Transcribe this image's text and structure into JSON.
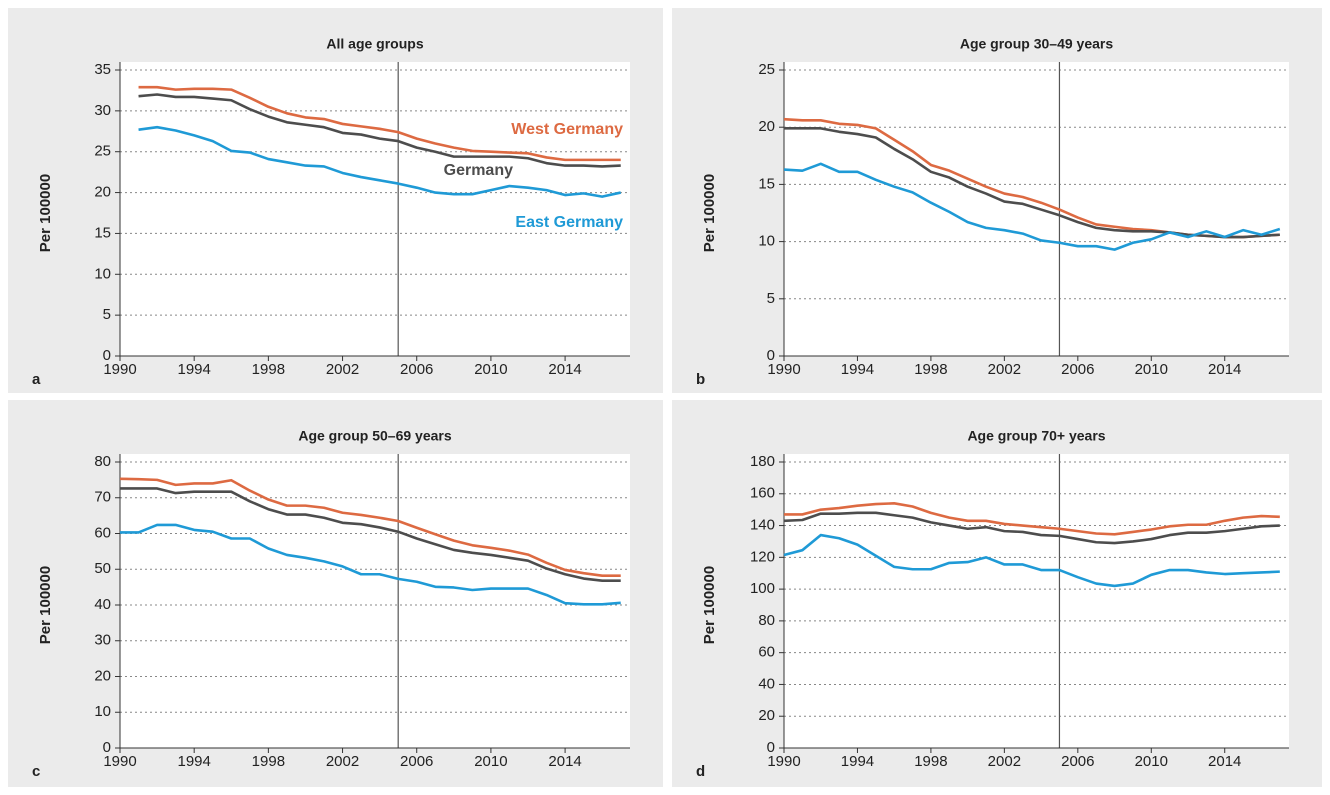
{
  "chart_data": [
    {
      "type": "line",
      "panel_label": "a",
      "title": "All age groups",
      "y_label": "Per 100000",
      "x": [
        1991,
        1992,
        1993,
        1994,
        1995,
        1996,
        1997,
        1998,
        1999,
        2000,
        2001,
        2002,
        2003,
        2004,
        2005,
        2006,
        2007,
        2008,
        2009,
        2010,
        2011,
        2012,
        2013,
        2014,
        2015,
        2016,
        2017
      ],
      "series": [
        {
          "name": "West Germany",
          "color": "#dd6a42",
          "values": [
            32.9,
            32.9,
            32.6,
            32.7,
            32.7,
            32.6,
            31.6,
            30.5,
            29.7,
            29.2,
            29.0,
            28.4,
            28.1,
            27.8,
            27.4,
            26.6,
            26.0,
            25.5,
            25.1,
            25.0,
            24.9,
            24.8,
            24.3,
            24.0,
            24.0,
            24.0,
            24.0
          ]
        },
        {
          "name": "Germany",
          "color": "#4d4d4d",
          "values": [
            31.8,
            32.0,
            31.7,
            31.7,
            31.5,
            31.3,
            30.2,
            29.3,
            28.6,
            28.3,
            28.0,
            27.3,
            27.1,
            26.6,
            26.3,
            25.5,
            25.0,
            24.4,
            24.4,
            24.4,
            24.4,
            24.2,
            23.6,
            23.3,
            23.3,
            23.2,
            23.3
          ]
        },
        {
          "name": "East Germany",
          "color": "#1f9ad6",
          "values": [
            27.7,
            28.0,
            27.6,
            27.0,
            26.3,
            25.1,
            24.9,
            24.1,
            23.7,
            23.3,
            23.2,
            22.4,
            21.9,
            21.5,
            21.1,
            20.6,
            20.0,
            19.8,
            19.8,
            20.3,
            20.8,
            20.6,
            20.3,
            19.7,
            19.9,
            19.5,
            20.0
          ]
        }
      ],
      "xlim": [
        1990,
        2017.5
      ],
      "xticks": [
        1990,
        1994,
        1998,
        2002,
        2006,
        2010,
        2014
      ],
      "ylim": [
        0,
        35
      ],
      "yticks": [
        0,
        5,
        10,
        15,
        20,
        25,
        30,
        35
      ],
      "vline": 2005,
      "grid": true
    },
    {
      "type": "line",
      "panel_label": "b",
      "title": "Age group 30–49 years",
      "y_label": "Per 100000",
      "x": [
        1990,
        1991,
        1992,
        1993,
        1994,
        1995,
        1996,
        1997,
        1998,
        1999,
        2000,
        2001,
        2002,
        2003,
        2004,
        2005,
        2006,
        2007,
        2008,
        2009,
        2010,
        2011,
        2012,
        2013,
        2014,
        2015,
        2016,
        2017
      ],
      "series": [
        {
          "color": "#dd6a42",
          "values": [
            20.7,
            20.6,
            20.6,
            20.3,
            20.2,
            19.9,
            18.9,
            17.9,
            16.7,
            16.2,
            15.5,
            14.8,
            14.2,
            13.9,
            13.4,
            12.8,
            12.1,
            11.5,
            11.3,
            11.1,
            11.0,
            10.8,
            10.6,
            10.5,
            10.4,
            10.4,
            10.5,
            10.6
          ]
        },
        {
          "color": "#4d4d4d",
          "values": [
            19.9,
            19.9,
            19.9,
            19.6,
            19.4,
            19.1,
            18.1,
            17.2,
            16.1,
            15.6,
            14.8,
            14.2,
            13.5,
            13.3,
            12.8,
            12.3,
            11.7,
            11.2,
            11.0,
            10.9,
            10.9,
            10.8,
            10.6,
            10.5,
            10.4,
            10.4,
            10.5,
            10.6
          ]
        },
        {
          "color": "#1f9ad6",
          "values": [
            16.3,
            16.2,
            16.8,
            16.1,
            16.1,
            15.4,
            14.8,
            14.3,
            13.4,
            12.6,
            11.7,
            11.2,
            11.0,
            10.7,
            10.1,
            9.9,
            9.6,
            9.6,
            9.3,
            9.9,
            10.2,
            10.8,
            10.4,
            10.9,
            10.4,
            11.0,
            10.6,
            11.1
          ]
        }
      ],
      "xlim": [
        1990,
        2017.5
      ],
      "xticks": [
        1990,
        1994,
        1998,
        2002,
        2006,
        2010,
        2014
      ],
      "ylim": [
        0,
        25
      ],
      "yticks": [
        0,
        5,
        10,
        15,
        20,
        25
      ],
      "vline": 2005,
      "grid": true
    },
    {
      "type": "line",
      "panel_label": "c",
      "title": "Age group 50–69 years",
      "y_label": "Per 100000",
      "x": [
        1990,
        1991,
        1992,
        1993,
        1994,
        1995,
        1996,
        1997,
        1998,
        1999,
        2000,
        2001,
        2002,
        2003,
        2004,
        2005,
        2006,
        2007,
        2008,
        2009,
        2010,
        2011,
        2012,
        2013,
        2014,
        2015,
        2016,
        2017
      ],
      "series": [
        {
          "color": "#dd6a42",
          "values": [
            75.3,
            75.2,
            75.0,
            73.6,
            74.0,
            74.0,
            74.9,
            72.0,
            69.5,
            67.8,
            67.8,
            67.2,
            65.8,
            65.2,
            64.4,
            63.5,
            61.6,
            59.8,
            58.0,
            56.7,
            56.0,
            55.2,
            54.1,
            51.8,
            49.8,
            48.9,
            48.2,
            48.2
          ]
        },
        {
          "color": "#4d4d4d",
          "values": [
            72.6,
            72.6,
            72.6,
            71.3,
            71.7,
            71.7,
            71.7,
            69.0,
            66.8,
            65.3,
            65.3,
            64.4,
            63.0,
            62.6,
            61.7,
            60.5,
            58.6,
            57.0,
            55.4,
            54.6,
            54.0,
            53.2,
            52.4,
            50.2,
            48.6,
            47.4,
            46.8,
            46.8
          ]
        },
        {
          "color": "#1f9ad6",
          "values": [
            60.3,
            60.3,
            62.4,
            62.4,
            61.0,
            60.5,
            58.6,
            58.6,
            55.8,
            54.0,
            53.2,
            52.2,
            50.8,
            48.6,
            48.6,
            47.3,
            46.5,
            45.1,
            44.9,
            44.2,
            44.6,
            44.6,
            44.6,
            42.8,
            40.5,
            40.2,
            40.2,
            40.6
          ]
        }
      ],
      "xlim": [
        1990,
        2017.5
      ],
      "xticks": [
        1990,
        1994,
        1998,
        2002,
        2006,
        2010,
        2014
      ],
      "ylim": [
        0,
        80
      ],
      "yticks": [
        0,
        10,
        20,
        30,
        40,
        50,
        60,
        70,
        80
      ],
      "vline": 2005,
      "grid": true
    },
    {
      "type": "line",
      "panel_label": "d",
      "title": "Age group 70+ years",
      "y_label": "Per 100000",
      "x": [
        1990,
        1991,
        1992,
        1993,
        1994,
        1995,
        1996,
        1997,
        1998,
        1999,
        2000,
        2001,
        2002,
        2003,
        2004,
        2005,
        2006,
        2007,
        2008,
        2009,
        2010,
        2011,
        2012,
        2013,
        2014,
        2015,
        2016,
        2017
      ],
      "series": [
        {
          "color": "#dd6a42",
          "values": [
            147,
            147,
            150,
            151,
            152.5,
            153.5,
            154,
            152,
            148,
            145,
            143,
            143,
            141,
            140,
            139,
            138,
            136.5,
            135,
            134.5,
            136,
            137.5,
            139.5,
            140.5,
            140.5,
            143,
            145,
            146,
            145.5
          ]
        },
        {
          "color": "#4d4d4d",
          "values": [
            143,
            143.5,
            147.5,
            147.5,
            148,
            148,
            146.5,
            145,
            142,
            140,
            138,
            139,
            136.5,
            136,
            134,
            133.5,
            131.5,
            129.5,
            129,
            130,
            131.5,
            134,
            135.5,
            135.5,
            136.5,
            138,
            139.5,
            140
          ]
        },
        {
          "color": "#1f9ad6",
          "values": [
            121.5,
            124.5,
            134,
            132,
            128,
            121,
            114,
            112.5,
            112.5,
            116.5,
            117,
            120,
            115.5,
            115.5,
            112,
            112,
            107.5,
            103.5,
            102,
            103.5,
            109,
            112,
            112,
            110.5,
            109.5,
            110,
            110.5,
            111
          ]
        }
      ],
      "xlim": [
        1990,
        2017.5
      ],
      "xticks": [
        1990,
        1994,
        1998,
        2002,
        2006,
        2010,
        2014
      ],
      "ylim": [
        0,
        180
      ],
      "yticks": [
        0,
        20,
        40,
        60,
        80,
        100,
        120,
        140,
        160,
        180
      ],
      "vline": 2005,
      "grid": true
    }
  ]
}
